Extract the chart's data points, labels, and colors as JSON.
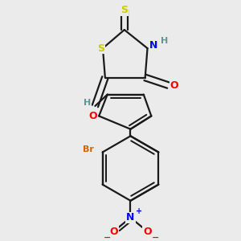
{
  "bg_color": "#ebebeb",
  "bond_color": "#1a1a1a",
  "bond_width": 1.6,
  "dbo": 0.022,
  "atom_colors": {
    "S": "#cccc00",
    "N": "#0000ff",
    "O": "#ff0000",
    "Br": "#cc6600",
    "H_label": "#5a9898",
    "C": "#1a1a1a"
  },
  "font_size": 9,
  "font_size_small": 8,
  "font_size_super": 6
}
